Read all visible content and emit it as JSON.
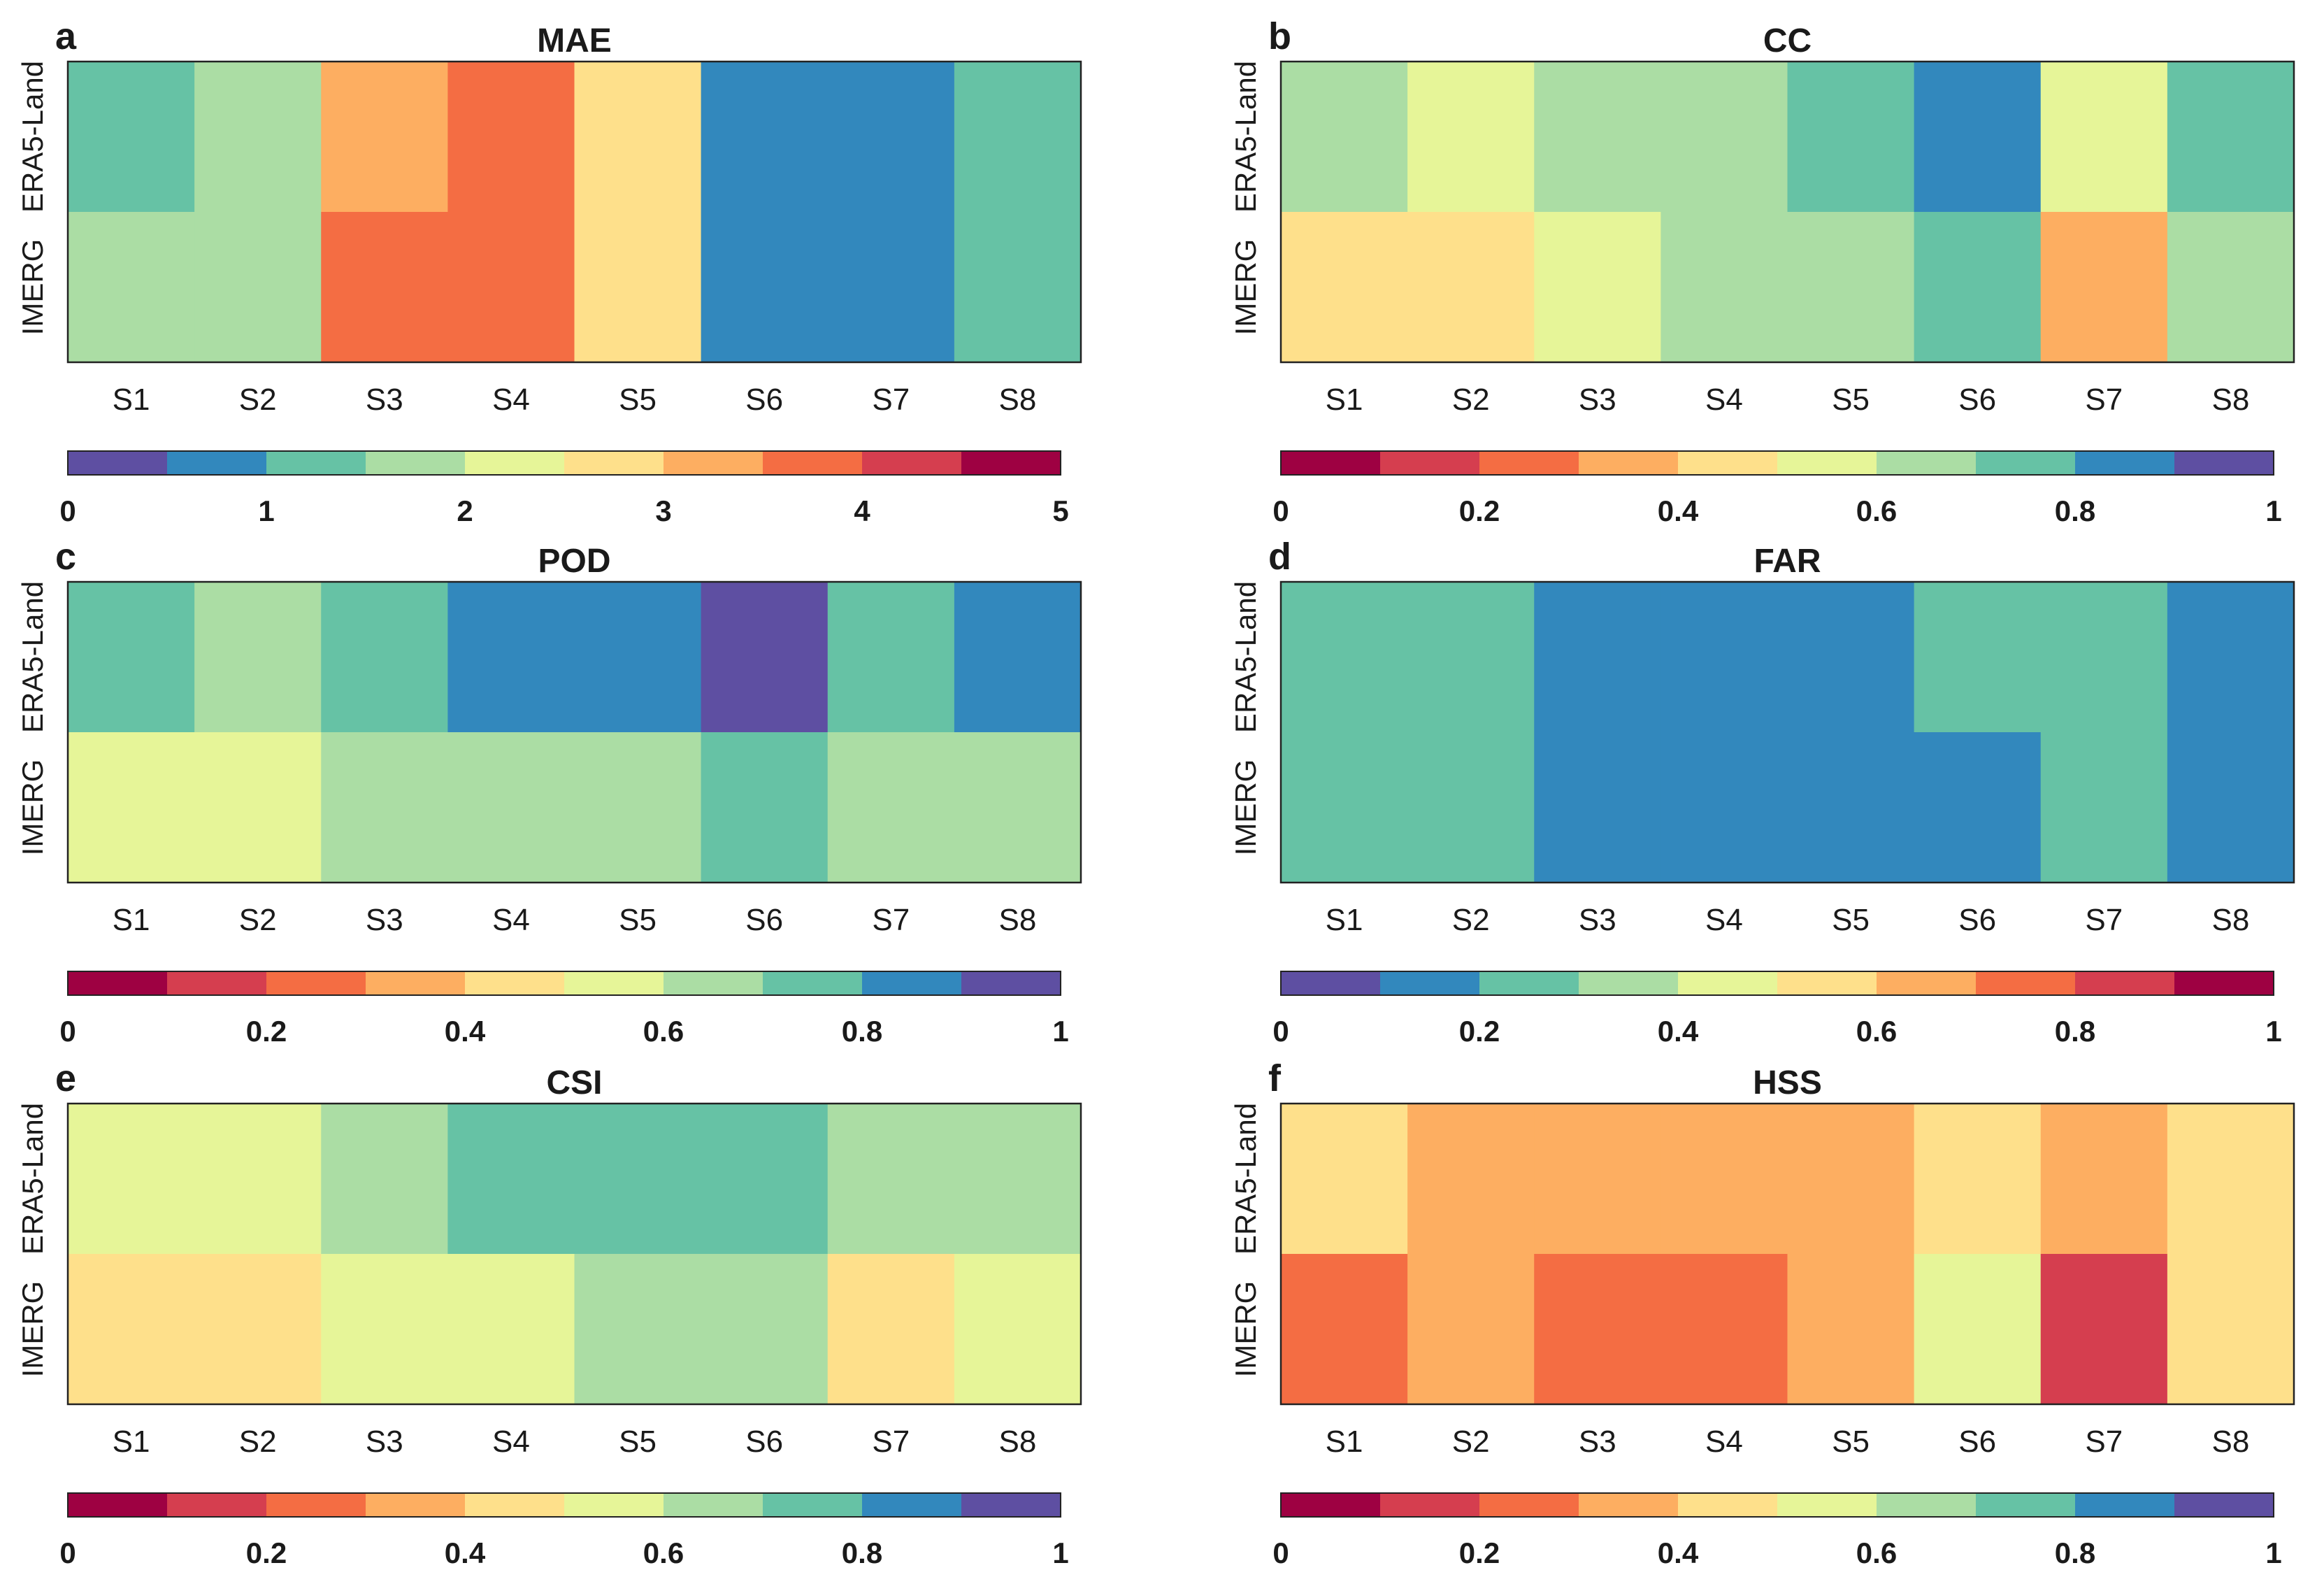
{
  "chart_data": [
    {
      "type": "heatmap",
      "panel": "a",
      "title": "MAE",
      "rows": [
        "ERA5-Land",
        "IMERG"
      ],
      "columns": [
        "S1",
        "S2",
        "S3",
        "S4",
        "S5",
        "S6",
        "S7",
        "S8"
      ],
      "values": [
        [
          1.25,
          1.75,
          3.25,
          3.75,
          2.75,
          0.75,
          0.75,
          1.25
        ],
        [
          1.75,
          1.75,
          3.75,
          3.75,
          2.75,
          0.75,
          0.75,
          1.25
        ]
      ],
      "colorbar": {
        "min": 0,
        "max": 5,
        "bins": 10,
        "ticks": [
          0,
          1,
          2,
          3,
          4,
          5
        ],
        "tick_labels": [
          "0",
          "1",
          "2",
          "3",
          "4",
          "5"
        ],
        "reversed": false
      }
    },
    {
      "type": "heatmap",
      "panel": "b",
      "title": "CC",
      "rows": [
        "ERA5-Land",
        "IMERG"
      ],
      "columns": [
        "S1",
        "S2",
        "S3",
        "S4",
        "S5",
        "S6",
        "S7",
        "S8"
      ],
      "values": [
        [
          0.65,
          0.55,
          0.65,
          0.65,
          0.75,
          0.85,
          0.55,
          0.75
        ],
        [
          0.45,
          0.45,
          0.55,
          0.65,
          0.65,
          0.75,
          0.35,
          0.65
        ]
      ],
      "colorbar": {
        "min": 0,
        "max": 1,
        "bins": 10,
        "ticks": [
          0,
          0.2,
          0.4,
          0.6,
          0.8,
          1
        ],
        "tick_labels": [
          "0",
          "0.2",
          "0.4",
          "0.6",
          "0.8",
          "1"
        ],
        "reversed": true
      }
    },
    {
      "type": "heatmap",
      "panel": "c",
      "title": "POD",
      "rows": [
        "ERA5-Land",
        "IMERG"
      ],
      "columns": [
        "S1",
        "S2",
        "S3",
        "S4",
        "S5",
        "S6",
        "S7",
        "S8"
      ],
      "values": [
        [
          0.75,
          0.65,
          0.75,
          0.85,
          0.85,
          0.95,
          0.75,
          0.85
        ],
        [
          0.55,
          0.55,
          0.65,
          0.65,
          0.65,
          0.75,
          0.65,
          0.65
        ]
      ],
      "colorbar": {
        "min": 0,
        "max": 1,
        "bins": 10,
        "ticks": [
          0,
          0.2,
          0.4,
          0.6,
          0.8,
          1
        ],
        "tick_labels": [
          "0",
          "0.2",
          "0.4",
          "0.6",
          "0.8",
          "1"
        ],
        "reversed": true
      }
    },
    {
      "type": "heatmap",
      "panel": "d",
      "title": "FAR",
      "rows": [
        "ERA5-Land",
        "IMERG"
      ],
      "columns": [
        "S1",
        "S2",
        "S3",
        "S4",
        "S5",
        "S6",
        "S7",
        "S8"
      ],
      "values": [
        [
          0.25,
          0.25,
          0.15,
          0.15,
          0.15,
          0.25,
          0.25,
          0.15
        ],
        [
          0.25,
          0.25,
          0.15,
          0.15,
          0.15,
          0.15,
          0.25,
          0.15
        ]
      ],
      "colorbar": {
        "min": 0,
        "max": 1,
        "bins": 10,
        "ticks": [
          0,
          0.2,
          0.4,
          0.6,
          0.8,
          1
        ],
        "tick_labels": [
          "0",
          "0.2",
          "0.4",
          "0.6",
          "0.8",
          "1"
        ],
        "reversed": false
      }
    },
    {
      "type": "heatmap",
      "panel": "e",
      "title": "CSI",
      "rows": [
        "ERA5-Land",
        "IMERG"
      ],
      "columns": [
        "S1",
        "S2",
        "S3",
        "S4",
        "S5",
        "S6",
        "S7",
        "S8"
      ],
      "values": [
        [
          0.55,
          0.55,
          0.65,
          0.75,
          0.75,
          0.75,
          0.65,
          0.65
        ],
        [
          0.45,
          0.45,
          0.55,
          0.55,
          0.65,
          0.65,
          0.45,
          0.55
        ]
      ],
      "colorbar": {
        "min": 0,
        "max": 1,
        "bins": 10,
        "ticks": [
          0,
          0.2,
          0.4,
          0.6,
          0.8,
          1
        ],
        "tick_labels": [
          "0",
          "0.2",
          "0.4",
          "0.6",
          "0.8",
          "1"
        ],
        "reversed": true
      }
    },
    {
      "type": "heatmap",
      "panel": "f",
      "title": "HSS",
      "rows": [
        "ERA5-Land",
        "IMERG"
      ],
      "columns": [
        "S1",
        "S2",
        "S3",
        "S4",
        "S5",
        "S6",
        "S7",
        "S8"
      ],
      "values": [
        [
          0.45,
          0.35,
          0.35,
          0.35,
          0.35,
          0.45,
          0.35,
          0.45
        ],
        [
          0.25,
          0.35,
          0.25,
          0.25,
          0.35,
          0.55,
          0.15,
          0.45
        ]
      ],
      "colorbar": {
        "min": 0,
        "max": 1,
        "bins": 10,
        "ticks": [
          0,
          0.2,
          0.4,
          0.6,
          0.8,
          1
        ],
        "tick_labels": [
          "0",
          "0.2",
          "0.4",
          "0.6",
          "0.8",
          "1"
        ],
        "reversed": true
      }
    }
  ],
  "palette": [
    "#5e4fa2",
    "#3288bd",
    "#66c2a5",
    "#abdda4",
    "#e6f598",
    "#fee08b",
    "#fdae61",
    "#f46d43",
    "#d53e4f",
    "#9e0142"
  ]
}
